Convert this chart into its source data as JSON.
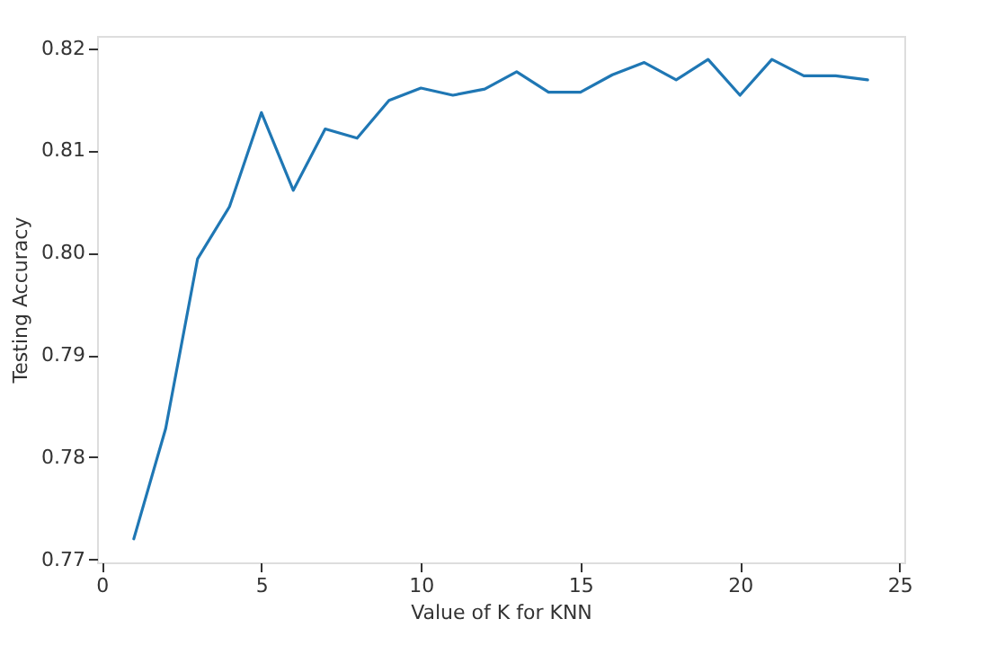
{
  "chart_data": {
    "type": "line",
    "xlabel": "Value of K for KNN",
    "ylabel": "Testing Accuracy",
    "x": [
      1,
      2,
      3,
      4,
      5,
      6,
      7,
      8,
      9,
      10,
      11,
      12,
      13,
      14,
      15,
      16,
      17,
      18,
      19,
      20,
      21,
      22,
      23,
      24
    ],
    "series": [
      {
        "color": "#1f77b4",
        "values": [
          0.772,
          0.7828,
          0.7994,
          0.8045,
          0.8137,
          0.8061,
          0.8121,
          0.8112,
          0.8149,
          0.8161,
          0.8154,
          0.816,
          0.8177,
          0.8157,
          0.8157,
          0.8174,
          0.8186,
          0.8169,
          0.8189,
          0.8154,
          0.8189,
          0.8173,
          0.8173,
          0.8169
        ]
      }
    ],
    "xlim": [
      -0.15,
      25.15
    ],
    "xticks": [
      0,
      5,
      10,
      15,
      20,
      25
    ],
    "ylim": [
      0.7697,
      0.8212
    ],
    "yticks": [
      {
        "value": 0.77,
        "label": "0.77"
      },
      {
        "value": 0.78,
        "label": "0.78"
      },
      {
        "value": 0.79,
        "label": "0.79"
      },
      {
        "value": 0.8,
        "label": "0.80"
      },
      {
        "value": 0.81,
        "label": "0.81"
      },
      {
        "value": 0.82,
        "label": "0.82"
      }
    ],
    "grid": false,
    "legend": false,
    "marker": "none",
    "line_style": "solid"
  }
}
